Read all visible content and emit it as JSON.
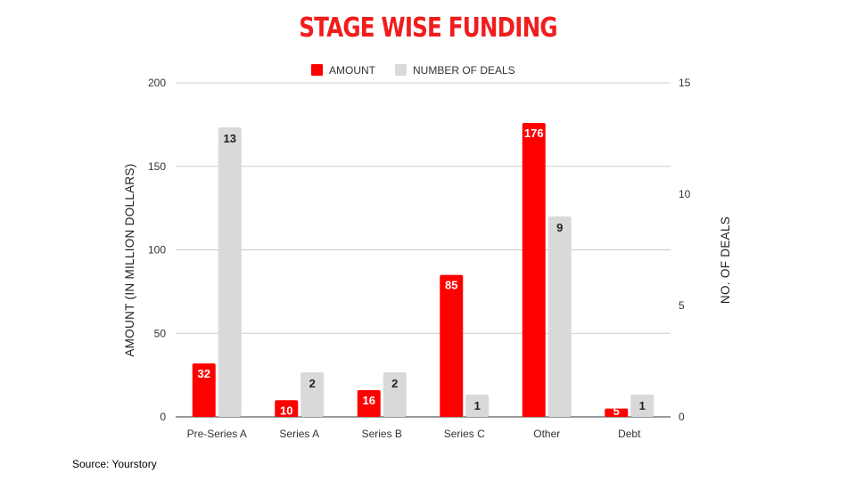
{
  "chart_data": {
    "type": "bar",
    "title": "STAGE WISE FUNDING",
    "categories": [
      "Pre-Series A",
      "Series A",
      "Series B",
      "Series C",
      "Other",
      "Debt"
    ],
    "series": [
      {
        "name": "AMOUNT",
        "axis": "left",
        "color": "#ff0000",
        "values": [
          32,
          10,
          16,
          85,
          176,
          5
        ]
      },
      {
        "name": "NUMBER OF DEALS",
        "axis": "right",
        "color": "#d9d9d9",
        "values": [
          13,
          2,
          2,
          1,
          9,
          1
        ]
      }
    ],
    "ylabel": "AMOUNT (IN MILLION DOLLARS)",
    "y2label": "NO. OF DEALS",
    "ylim": [
      0,
      200
    ],
    "y2lim": [
      0,
      15
    ],
    "yticks": [
      0,
      50,
      100,
      150,
      200
    ],
    "y2ticks": [
      0,
      5,
      10,
      15
    ],
    "legend_position": "top",
    "grid": true
  },
  "source": "Source: Yourstory"
}
